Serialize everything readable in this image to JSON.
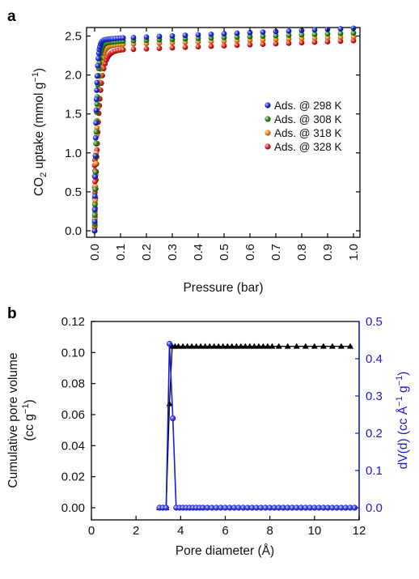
{
  "panel_a_letter": "a",
  "panel_b_letter": "b",
  "chart_data": [
    {
      "type": "scatter",
      "panel": "a",
      "title": "",
      "xlabel": "Pressure (bar)",
      "ylabel_main": "CO",
      "ylabel_sub": "2",
      "ylabel_rest": " uptake (mmol g",
      "ylabel_sup": "−1",
      "ylabel_end": ")",
      "xlim": [
        0,
        1.0
      ],
      "ylim": [
        0,
        2.6
      ],
      "xticks": [
        "0.0",
        "0.1",
        "0.2",
        "0.3",
        "0.4",
        "0.5",
        "0.6",
        "0.7",
        "0.8",
        "0.9",
        "1.0"
      ],
      "yticks": [
        "0.0",
        "0.5",
        "1.0",
        "1.5",
        "2.0",
        "2.5"
      ],
      "legend_position": "right",
      "series": [
        {
          "name": "Ads. @ 298 K",
          "color": "#1f2fd6",
          "plateau": 2.45,
          "end": 2.57,
          "k": 0.006
        },
        {
          "name": "Ads. @ 308 K",
          "color": "#2e8b1f",
          "plateau": 2.41,
          "end": 2.51,
          "k": 0.008
        },
        {
          "name": "Ads. @ 318 K",
          "color": "#f08a1a",
          "plateau": 2.37,
          "end": 2.46,
          "k": 0.011
        },
        {
          "name": "Ads. @ 328 K",
          "color": "#e02020",
          "plateau": 2.3,
          "end": 2.41,
          "k": 0.015
        }
      ]
    },
    {
      "type": "line",
      "panel": "b",
      "title": "",
      "xlabel": "Pore diameter (Å)",
      "ylabel_left_1": "Cumulative pore volume",
      "ylabel_left_2a": "(cc g",
      "ylabel_left_2sup": "−1",
      "ylabel_left_2b": ")",
      "ylabel_right_a": "dV(d) (cc Å",
      "ylabel_right_sup1": "−1",
      "ylabel_right_b": " g",
      "ylabel_right_sup2": "−1",
      "ylabel_right_c": ")",
      "xlim": [
        0,
        12
      ],
      "ylim_left": [
        0,
        0.12
      ],
      "ylim_right": [
        0,
        0.5
      ],
      "xticks": [
        "0",
        "2",
        "4",
        "6",
        "8",
        "10",
        "12"
      ],
      "yticks_left": [
        "0.00",
        "0.02",
        "0.04",
        "0.06",
        "0.08",
        "0.10",
        "0.12"
      ],
      "yticks_right": [
        "0.0",
        "0.1",
        "0.2",
        "0.3",
        "0.4",
        "0.5"
      ],
      "cumulative": {
        "color": "#000000",
        "x": [
          3.05,
          3.2,
          3.35,
          3.5,
          3.62,
          3.75,
          3.9,
          4.05,
          4.2,
          4.35,
          4.5,
          4.65,
          4.8,
          4.95,
          5.1,
          5.25,
          5.4,
          5.55,
          5.7,
          5.85,
          6.0,
          6.15,
          6.3,
          6.45,
          6.6,
          6.75,
          6.9,
          7.05,
          7.2,
          7.35,
          7.5,
          7.65,
          7.8,
          7.95,
          8.1,
          8.25,
          8.4,
          8.55,
          8.7,
          8.85,
          9.0,
          9.15,
          9.3,
          9.45,
          9.6,
          9.75,
          9.9,
          10.05,
          10.2,
          10.35,
          10.5,
          10.65,
          10.8,
          10.95,
          11.1,
          11.25,
          11.4,
          11.55,
          11.7
        ],
        "y": [
          0.0,
          0.0,
          0.0,
          0.067,
          0.104,
          0.104,
          0.104,
          0.104,
          0.104,
          0.104,
          0.104,
          0.104,
          0.104,
          0.104,
          0.104,
          0.104,
          0.104,
          0.104,
          0.104,
          0.104,
          0.104,
          0.104,
          0.104,
          0.104,
          0.104,
          0.104,
          0.104,
          0.104,
          0.104,
          0.104,
          0.104,
          0.104,
          0.104,
          0.104,
          0.104,
          0.104,
          0.104,
          0.104,
          0.104,
          0.104,
          0.104,
          0.104,
          0.104,
          0.104,
          0.104,
          0.104,
          0.104,
          0.104,
          0.104,
          0.104,
          0.104,
          0.104,
          0.104,
          0.104,
          0.104,
          0.104,
          0.104,
          0.104,
          0.104
        ],
        "marker_x": [
          3.05,
          3.2,
          3.35,
          3.5,
          3.62,
          3.75,
          3.9,
          4.1,
          4.3,
          4.5,
          4.7,
          4.9,
          5.1,
          5.3,
          5.5,
          5.7,
          5.9,
          6.1,
          6.3,
          6.5,
          6.7,
          6.9,
          7.1,
          7.3,
          7.5,
          7.7,
          7.9,
          8.1,
          8.4,
          8.8,
          9.2,
          9.6,
          10.0,
          10.4,
          10.8,
          11.2,
          11.6
        ]
      },
      "differential": {
        "color": "#1b1bcc",
        "x": [
          3.05,
          3.2,
          3.35,
          3.5,
          3.65,
          3.8,
          3.95,
          4.1,
          4.25,
          4.4,
          4.55,
          4.7,
          4.85,
          5.0,
          5.2,
          5.4,
          5.6,
          5.8,
          6.0,
          6.2,
          6.4,
          6.6,
          6.8,
          7.0,
          7.2,
          7.4,
          7.6,
          7.8,
          8.0,
          8.2,
          8.4,
          8.6,
          8.8,
          9.0,
          9.2,
          9.4,
          9.6,
          9.8,
          10.0,
          10.2,
          10.4,
          10.6,
          10.8,
          11.0,
          11.2,
          11.4,
          11.6,
          11.8
        ],
        "y": [
          0.0,
          0.0,
          0.0,
          0.44,
          0.24,
          0.0,
          0.0,
          0.0,
          0.0,
          0.0,
          0.0,
          0.0,
          0.0,
          0.0,
          0.0,
          0.0,
          0.0,
          0.0,
          0.0,
          0.0,
          0.0,
          0.0,
          0.0,
          0.0,
          0.0,
          0.0,
          0.0,
          0.0,
          0.0,
          0.0,
          0.0,
          0.0,
          0.0,
          0.0,
          0.0,
          0.0,
          0.0,
          0.0,
          0.0,
          0.0,
          0.0,
          0.0,
          0.0,
          0.0,
          0.0,
          0.0,
          0.0,
          0.0
        ]
      }
    }
  ]
}
